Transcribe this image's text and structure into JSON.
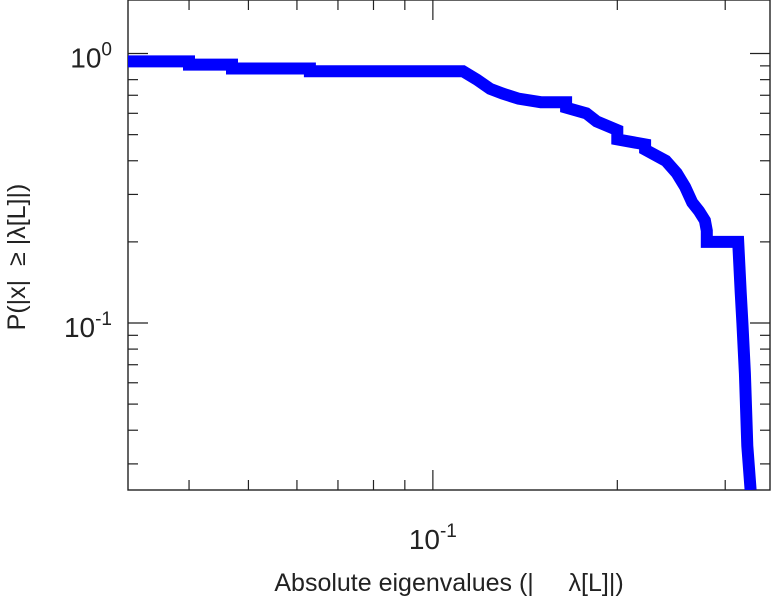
{
  "chart_data": {
    "type": "line",
    "xscale": "log",
    "yscale": "log",
    "xlim": [
      0.0318,
      0.355
    ],
    "ylim": [
      0.024,
      1.58
    ],
    "xlabel": "Absolute eigenvalues (|     λ[L]|)",
    "ylabel": "P(|x|  ≥ |λ[L]|)",
    "x_tick_labels": [
      {
        "base": "10",
        "exp": "-1",
        "value": 0.1
      }
    ],
    "y_tick_labels": [
      {
        "base": "10",
        "exp": "0",
        "value": 1.0
      },
      {
        "base": "10",
        "exp": "-1",
        "value": 0.1
      }
    ],
    "grid": false,
    "legend": "none",
    "series": [
      {
        "color": "#0000ff",
        "x": [
          0.0318,
          0.04,
          0.04,
          0.047,
          0.047,
          0.063,
          0.063,
          0.112,
          0.118,
          0.124,
          0.13,
          0.138,
          0.15,
          0.165,
          0.165,
          0.178,
          0.185,
          0.2,
          0.2,
          0.222,
          0.222,
          0.24,
          0.25,
          0.258,
          0.265,
          0.272,
          0.278,
          0.28,
          0.28,
          0.315,
          0.318,
          0.32,
          0.323,
          0.326,
          0.33
        ],
        "y": [
          0.935,
          0.935,
          0.91,
          0.91,
          0.88,
          0.88,
          0.86,
          0.86,
          0.8,
          0.74,
          0.71,
          0.68,
          0.66,
          0.66,
          0.63,
          0.6,
          0.56,
          0.52,
          0.48,
          0.46,
          0.44,
          0.4,
          0.36,
          0.32,
          0.28,
          0.26,
          0.24,
          0.22,
          0.2,
          0.2,
          0.13,
          0.1,
          0.065,
          0.035,
          0.024
        ]
      }
    ]
  }
}
